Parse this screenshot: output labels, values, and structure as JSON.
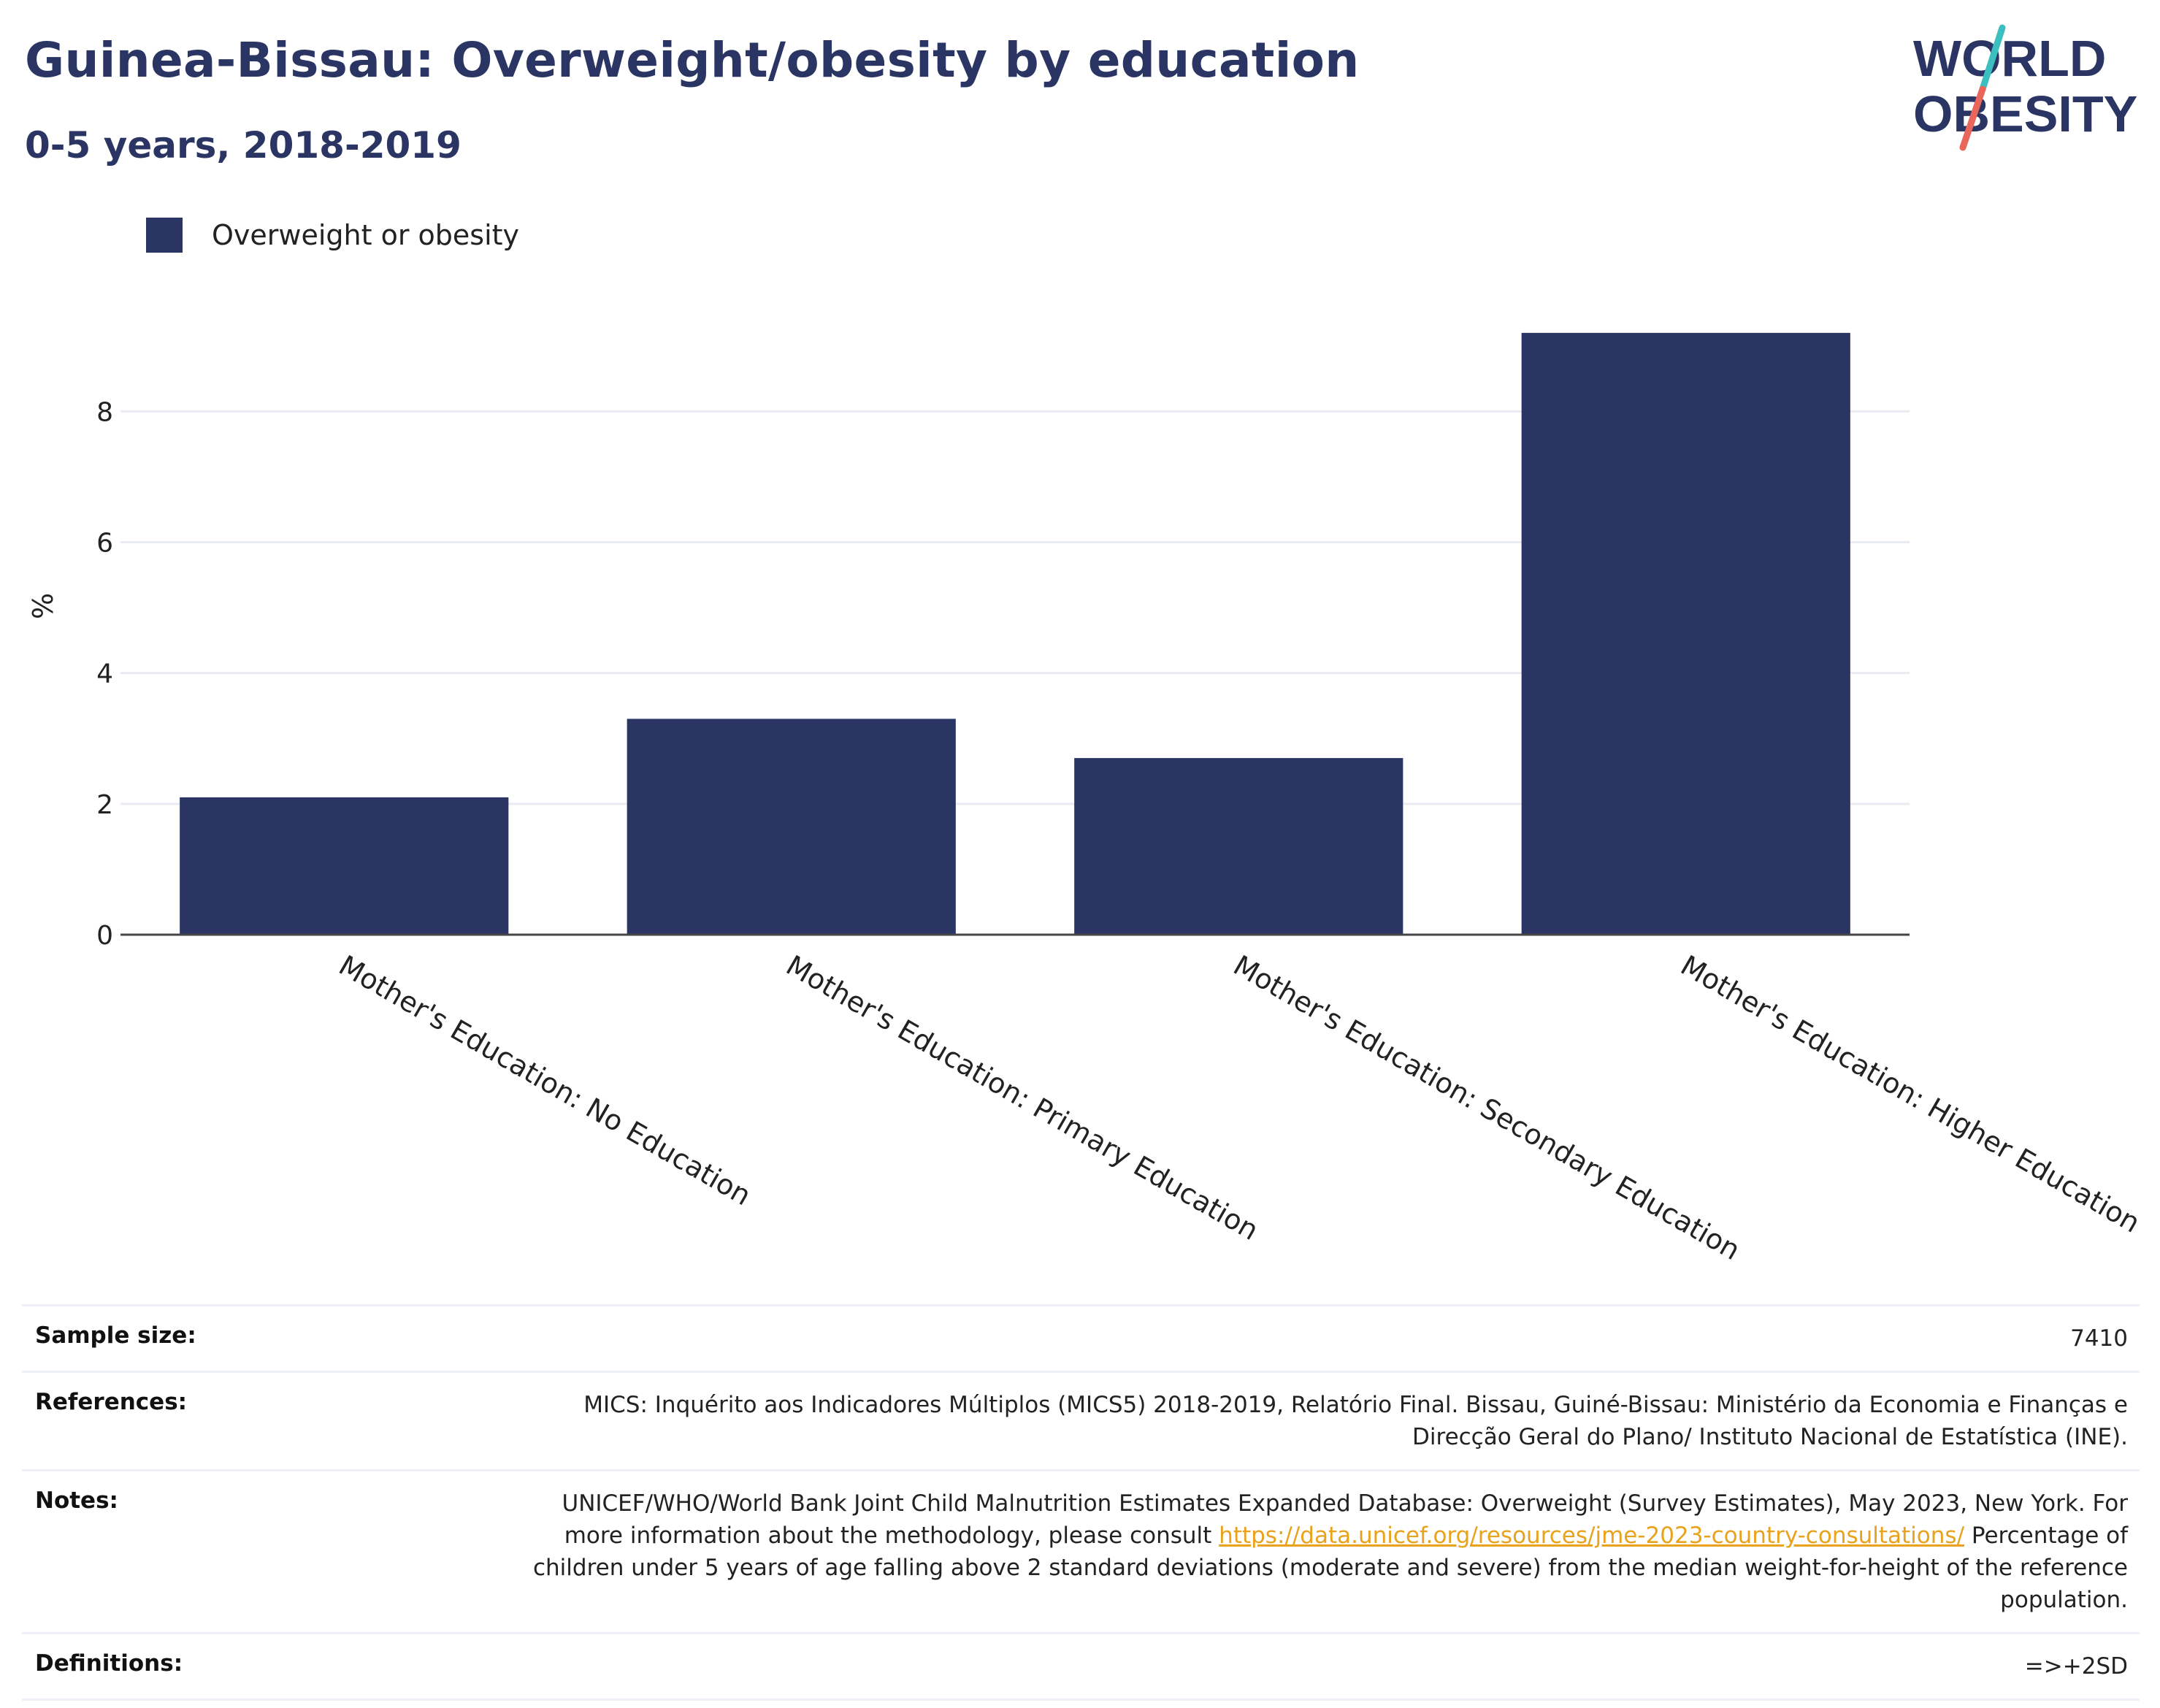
{
  "header": {
    "title": "Guinea-Bissau: Overweight/obesity by education",
    "subtitle": "0-5 years, 2018-2019"
  },
  "logo": {
    "line1": "WORLD",
    "line2": "OBESITY"
  },
  "colors": {
    "bar": "#2a3563",
    "title": "#2a3563",
    "grid": "#e9ebf2",
    "link": "#e9a21b",
    "logo_teal": "#3bbfbf",
    "logo_coral": "#e8675a"
  },
  "chart_data": {
    "type": "bar",
    "categories": [
      "Mother's Education: No Education",
      "Mother's Education: Primary Education",
      "Mother's Education: Secondary Education",
      "Mother's Education: Higher Education"
    ],
    "series": [
      {
        "name": "Overweight or obesity",
        "values": [
          2.1,
          3.3,
          2.7,
          9.2
        ]
      }
    ],
    "ylabel": "%",
    "xlabel": "",
    "ylim": [
      0,
      9.6
    ],
    "yticks": [
      0,
      2,
      4,
      6,
      8
    ],
    "grid": true,
    "legend": "top-left"
  },
  "info": {
    "sample_size_label": "Sample size:",
    "sample_size_value": "7410",
    "references_label": "References:",
    "references_value": "MICS: Inquérito aos Indicadores Múltiplos (MICS5) 2018-2019, Relatório Final. Bissau, Guiné-Bissau: Ministério da Economia e Finanças e Direcção Geral do Plano/ Instituto Nacional de Estatística (INE).",
    "notes_label": "Notes:",
    "notes_text_1": "UNICEF/WHO/World Bank Joint Child Malnutrition Estimates Expanded Database: Overweight (Survey Estimates), May 2023, New York. For more information about the methodology, please consult ",
    "notes_link": "https://data.unicef.org/resources/jme-2023-country-consultations/",
    "notes_text_2": " Percentage of children under 5 years of age falling above 2 standard deviations (moderate and severe) from the median weight-for-height of the reference population.",
    "definitions_label": "Definitions:",
    "definitions_value": "=>+2SD"
  }
}
